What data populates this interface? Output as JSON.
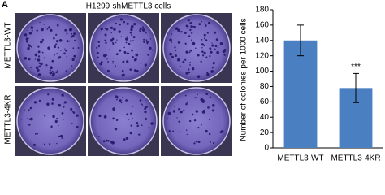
{
  "panel_label": "A",
  "image_title": "H1299-shMETTL3 cells",
  "row_labels": [
    "METTL3-WT",
    "METTL3-4KR"
  ],
  "chart_data": {
    "type": "bar",
    "y_label": "Number of colonies per 1000 cells",
    "categories": [
      "METTL3-WT",
      "METTL3-4KR"
    ],
    "values": [
      140,
      78
    ],
    "errors": [
      20,
      19
    ],
    "annotation": "***",
    "color": "#4a7fc1",
    "ylim": [
      0,
      180
    ],
    "yticks": [
      0,
      20,
      40,
      60,
      80,
      100,
      120,
      140,
      160,
      180
    ]
  }
}
